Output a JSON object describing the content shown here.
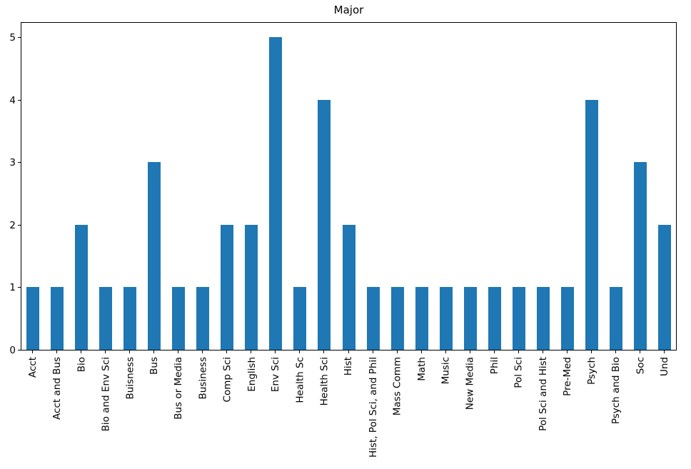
{
  "chart_data": {
    "type": "bar",
    "title": "Major",
    "categories": [
      "Acct",
      "Acct and Bus",
      "Bio",
      "Bio and Env Sci",
      "Buisness",
      "Bus",
      "Bus or Media",
      "Business",
      "Comp Sci",
      "English",
      "Env Sci",
      "Health Sc",
      "Health Sci",
      "Hist",
      "Hist, Pol Sci, and Phil",
      "Mass Comm",
      "Math",
      "Music",
      "New Media",
      "Phil",
      "Pol Sci",
      "Pol Sci and Hist",
      "Pre-Med",
      "Psych",
      "Psych and Bio",
      "Soc",
      "Und"
    ],
    "values": [
      1,
      1,
      2,
      1,
      1,
      3,
      1,
      1,
      2,
      2,
      5,
      1,
      4,
      2,
      1,
      1,
      1,
      1,
      1,
      1,
      1,
      1,
      1,
      4,
      1,
      3,
      2
    ],
    "xlabel": "",
    "ylabel": "",
    "yticks": [
      0,
      1,
      2,
      3,
      4,
      5
    ],
    "ylim": [
      0,
      5.25
    ],
    "bar_color": "#1f77b4",
    "axis_color": "#000000",
    "grid": false,
    "legend": null
  }
}
